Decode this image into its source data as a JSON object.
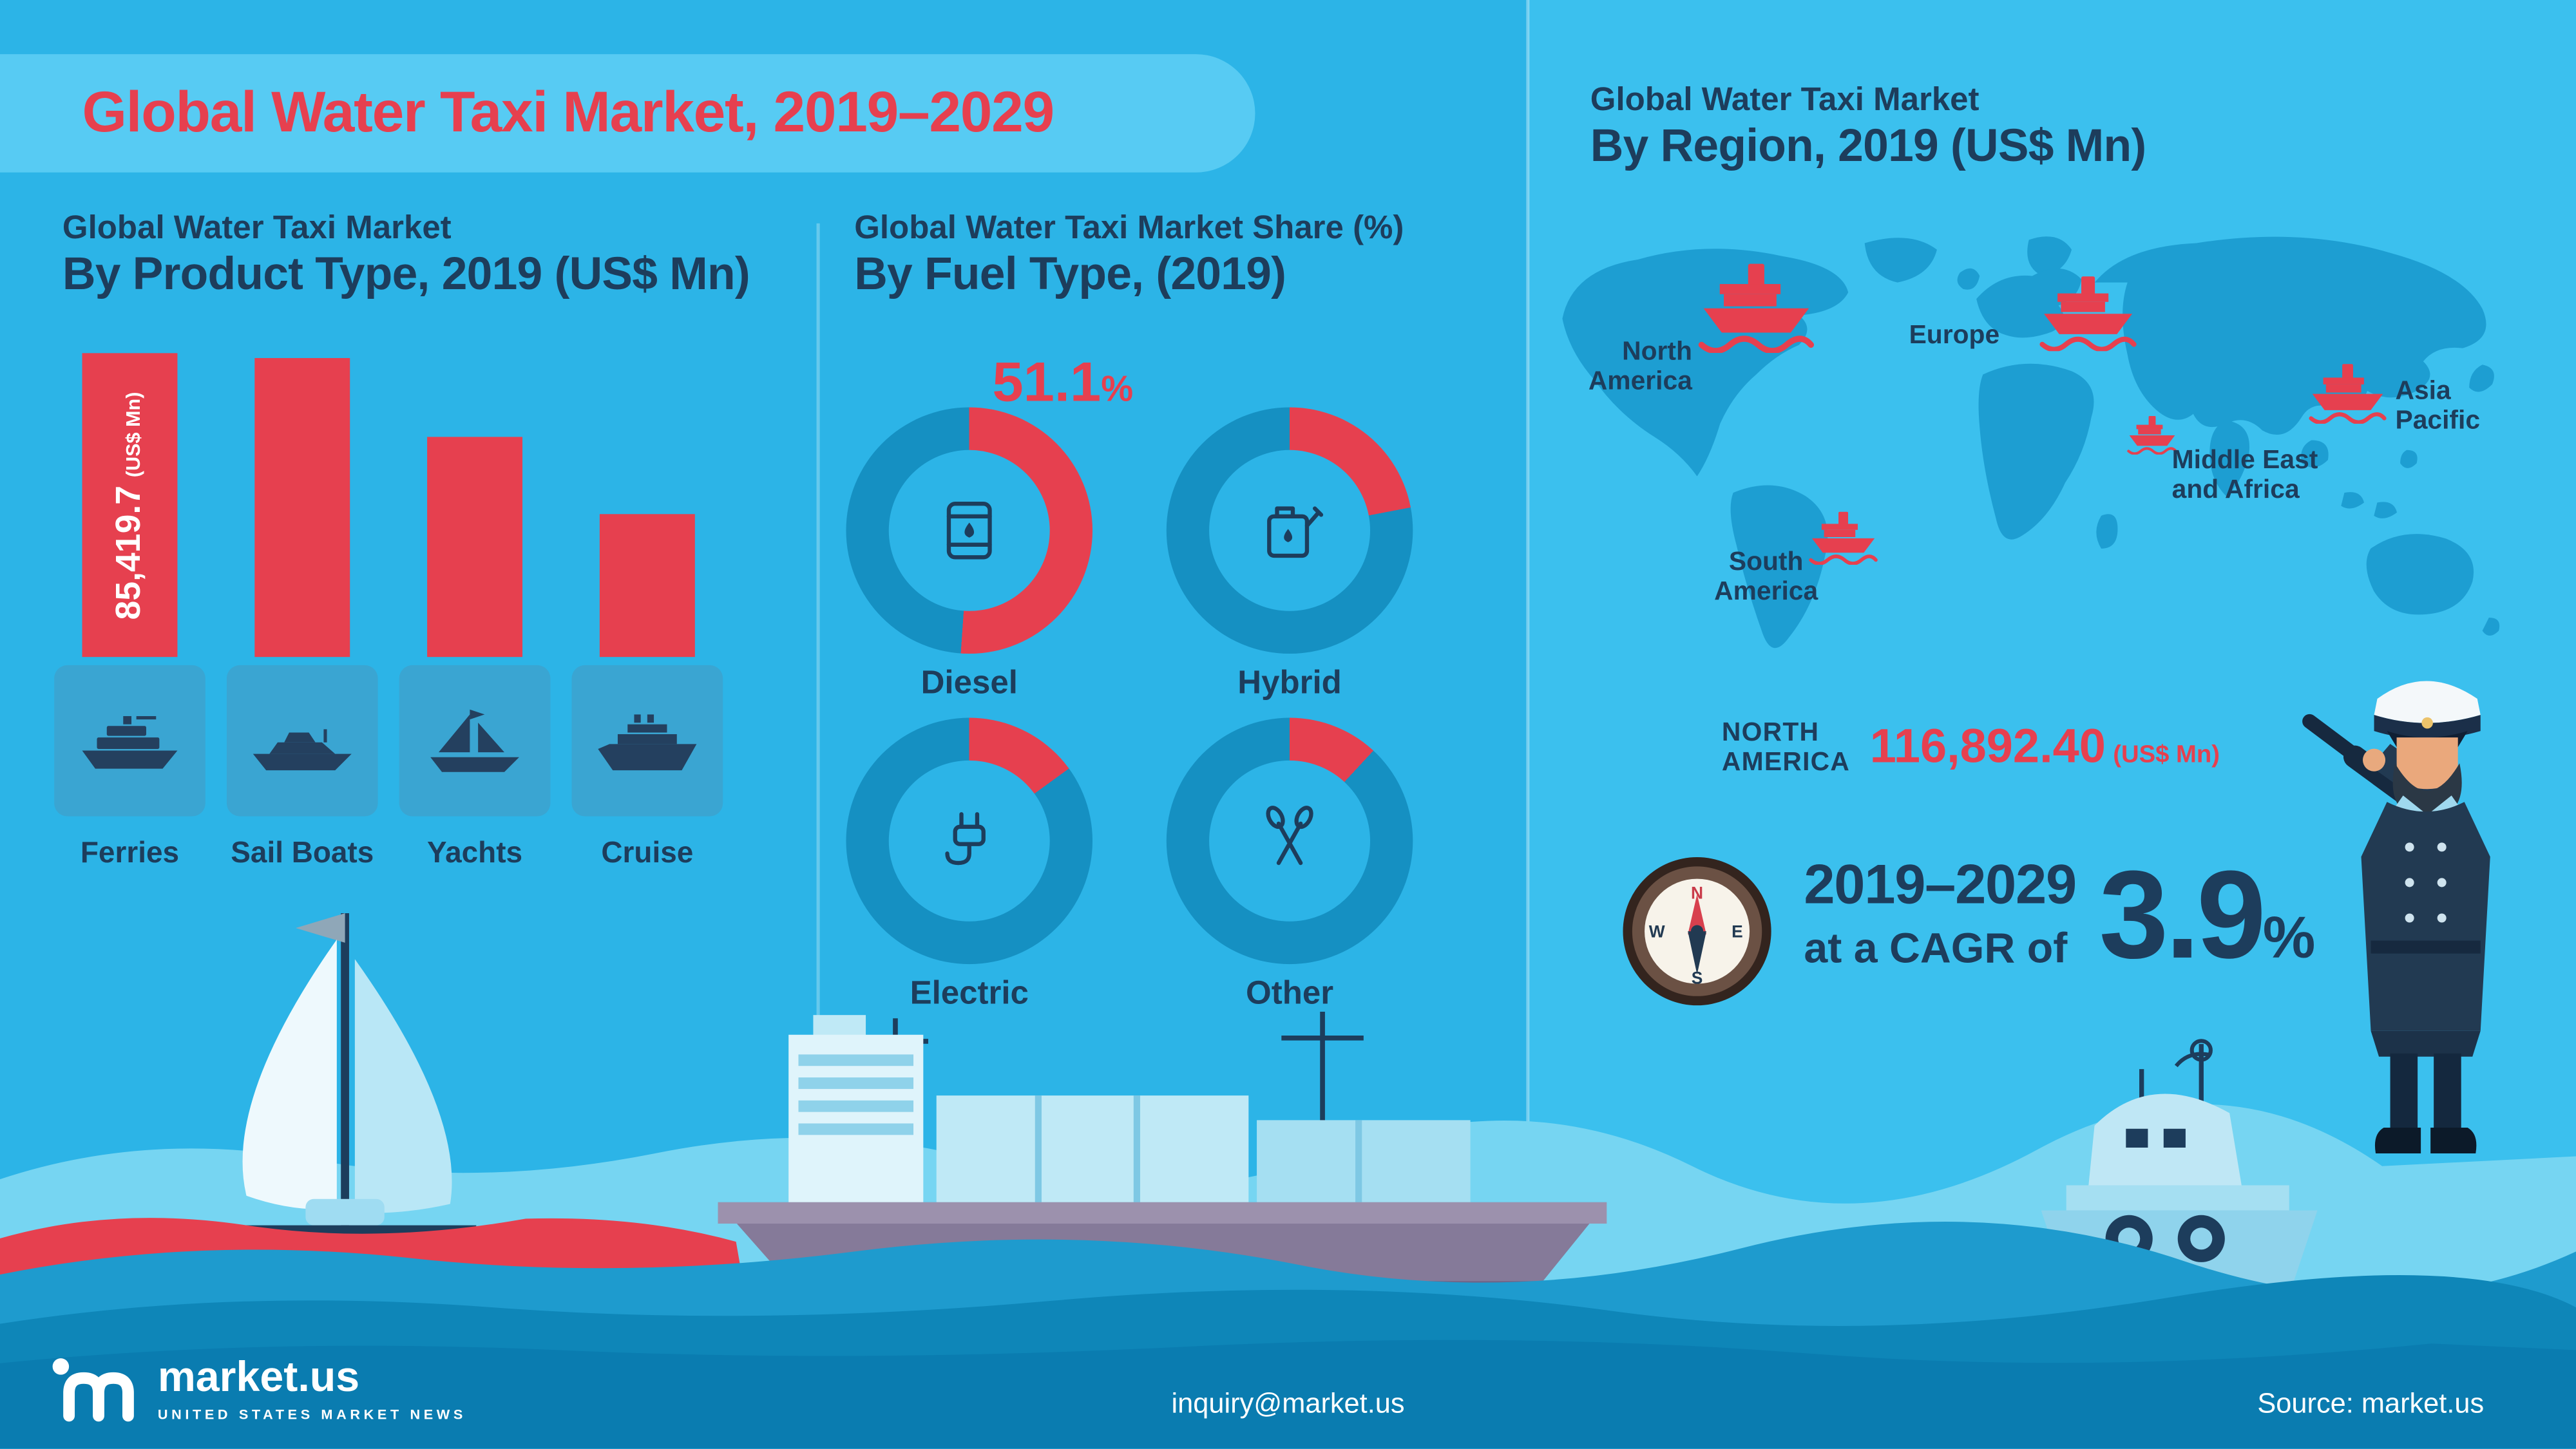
{
  "title": "Global Water Taxi Market, 2019–2029",
  "colors": {
    "accent_red": "#e6404f",
    "donut_track": "#1590c2",
    "navy": "#1d3d5c",
    "background": "#2cb4e7"
  },
  "product_section": {
    "heading_line1": "Global Water Taxi Market",
    "heading_line2": "By Product Type, 2019 (US$ Mn)",
    "bar_value_label": "85,419.7",
    "bar_value_unit": "(US$ Mn)"
  },
  "fuel_section": {
    "heading_line1": "Global Water Taxi Market Share (%)",
    "heading_line2": "By Fuel Type, (2019)",
    "highlight_value": "51.1",
    "highlight_unit": "%"
  },
  "region_section": {
    "heading_line1": "Global Water Taxi Market",
    "heading_line2": "By Region, 2019 (US$ Mn)",
    "regions": [
      {
        "line1": "North",
        "line2": "America"
      },
      {
        "line1": "Europe",
        "line2": ""
      },
      {
        "line1": "Asia",
        "line2": "Pacific"
      },
      {
        "line1": "Middle East",
        "line2": "and Africa"
      },
      {
        "line1": "South",
        "line2": "America"
      }
    ],
    "stat": {
      "label_line1": "NORTH",
      "label_line2": "AMERICA",
      "value": "116,892.40",
      "unit": "(US$ Mn)"
    }
  },
  "cagr_section": {
    "period": "2019–2029",
    "prefix": "at a CAGR of",
    "value": "3.9",
    "unit": "%"
  },
  "footer": {
    "brand": "market.us",
    "brand_tagline": "UNITED STATES MARKET NEWS",
    "email": "inquiry@market.us",
    "source": "Source: market.us"
  },
  "chart_data": [
    {
      "type": "bar",
      "title": "Global Water Taxi Market By Product Type, 2019 (US$ Mn)",
      "categories": [
        "Ferries",
        "Sail Boats",
        "Yachts",
        "Cruise"
      ],
      "values": [
        85419.7,
        84000,
        62000,
        40000
      ],
      "value_labels": [
        "85,419.7 (US$ Mn)",
        "",
        "",
        ""
      ],
      "ylabel": "US$ Mn",
      "bar_color": "#e6404f"
    },
    {
      "type": "donut",
      "title": "Global Water Taxi Market Share (%) By Fuel Type, (2019)",
      "categories": [
        "Diesel",
        "Hybrid",
        "Electric",
        "Other"
      ],
      "values": [
        51.1,
        22,
        15,
        11.9
      ],
      "highlight": "Diesel 51.1%"
    },
    {
      "type": "map",
      "title": "Global Water Taxi Market By Region, 2019 (US$ Mn)",
      "regions": [
        "North America",
        "Europe",
        "Asia Pacific",
        "Middle East and Africa",
        "South America"
      ],
      "values": {
        "North America": 116892.4
      },
      "cagr_percent": 3.9,
      "cagr_period": "2019–2029"
    }
  ]
}
